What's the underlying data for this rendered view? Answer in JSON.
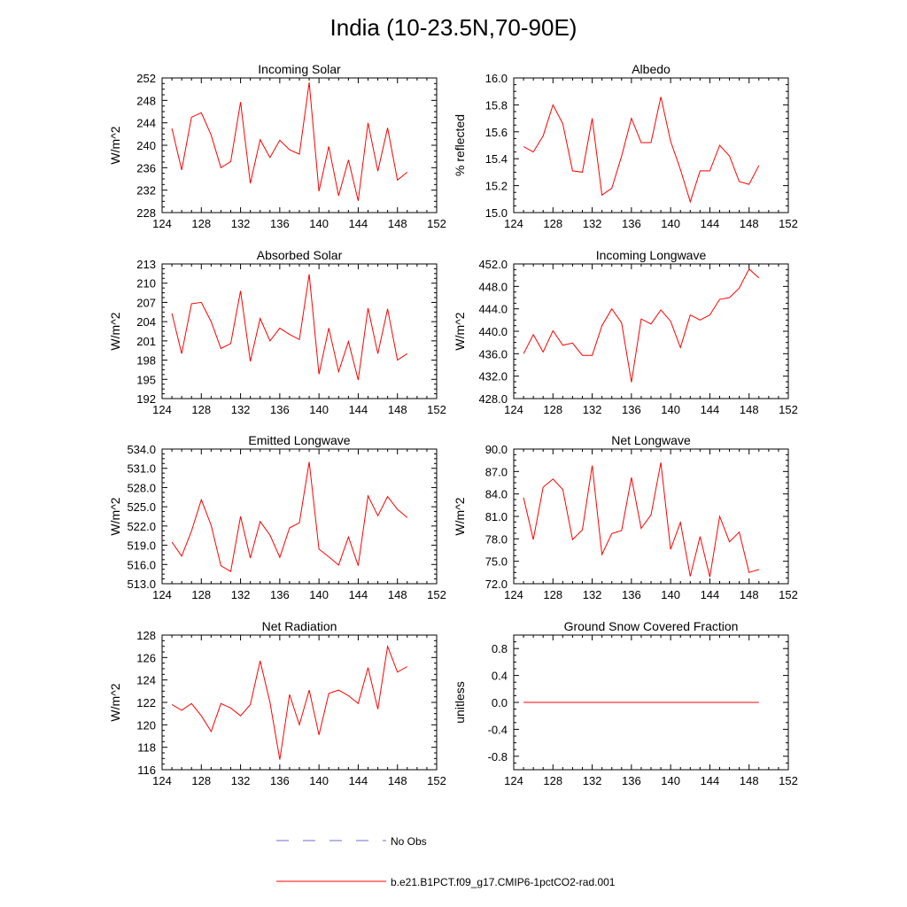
{
  "figure": {
    "title": "India (10-23.5N,70-90E)",
    "legend": [
      {
        "label": "No Obs",
        "color": "#6b6bd6",
        "dash": "dashed"
      },
      {
        "label": "b.e21.B1PCT.f09_g17.CMIP6-1pctCO2-rad.001",
        "color": "#ff0000",
        "dash": "solid"
      }
    ]
  },
  "colors": {
    "series": "#ff0000",
    "axis": "#000000"
  },
  "chart_data": [
    {
      "type": "line",
      "title": "Incoming Solar",
      "ylabel": "W/m^2",
      "xlim": [
        124,
        152
      ],
      "ylim": [
        228,
        252
      ],
      "xticks": [
        "124",
        "128",
        "132",
        "136",
        "140",
        "144",
        "148",
        "152"
      ],
      "yticks": [
        "228",
        "232",
        "236",
        "240",
        "244",
        "248",
        "252"
      ],
      "x": [
        125,
        126,
        127,
        128,
        129,
        130,
        131,
        132,
        133,
        134,
        135,
        136,
        137,
        138,
        139,
        140,
        141,
        142,
        143,
        144,
        145,
        146,
        147,
        148,
        149
      ],
      "series": [
        {
          "values": [
            243.0,
            235.6,
            245.0,
            245.8,
            241.8,
            236.0,
            237.1,
            247.7,
            233.2,
            241.0,
            237.8,
            240.9,
            239.2,
            238.4,
            251.2,
            231.8,
            239.8,
            231.0,
            237.4,
            230.1,
            244.0,
            235.4,
            243.1,
            233.8,
            235.2
          ]
        }
      ]
    },
    {
      "type": "line",
      "title": "Albedo",
      "ylabel": "% reflected",
      "xlim": [
        124,
        152
      ],
      "ylim": [
        15.0,
        16.0
      ],
      "xticks": [
        "124",
        "128",
        "132",
        "136",
        "140",
        "144",
        "148",
        "152"
      ],
      "yticks": [
        "15.0",
        "15.2",
        "15.4",
        "15.6",
        "15.8",
        "16.0"
      ],
      "x": [
        125,
        126,
        127,
        128,
        129,
        130,
        131,
        132,
        133,
        134,
        135,
        136,
        137,
        138,
        139,
        140,
        141,
        142,
        143,
        144,
        145,
        146,
        147,
        148,
        149
      ],
      "series": [
        {
          "values": [
            15.49,
            15.45,
            15.57,
            15.8,
            15.66,
            15.31,
            15.3,
            15.7,
            15.13,
            15.18,
            15.42,
            15.7,
            15.52,
            15.52,
            15.86,
            15.53,
            15.32,
            15.08,
            15.31,
            15.31,
            15.5,
            15.42,
            15.23,
            15.21,
            15.35
          ]
        }
      ]
    },
    {
      "type": "line",
      "title": "Absorbed Solar",
      "ylabel": "W/m^2",
      "xlim": [
        124,
        152
      ],
      "ylim": [
        192,
        213
      ],
      "xticks": [
        "124",
        "128",
        "132",
        "136",
        "140",
        "144",
        "148",
        "152"
      ],
      "yticks": [
        "192",
        "195",
        "198",
        "201",
        "204",
        "207",
        "210",
        "213"
      ],
      "x": [
        125,
        126,
        127,
        128,
        129,
        130,
        131,
        132,
        133,
        134,
        135,
        136,
        137,
        138,
        139,
        140,
        141,
        142,
        143,
        144,
        145,
        146,
        147,
        148,
        149
      ],
      "series": [
        {
          "values": [
            205.3,
            199.0,
            206.8,
            207.0,
            204.0,
            199.8,
            200.6,
            208.8,
            197.8,
            204.5,
            201.0,
            203.0,
            202.0,
            201.2,
            211.4,
            195.8,
            203.0,
            196.2,
            200.9,
            194.9,
            206.1,
            199.0,
            206.0,
            198.0,
            199.0
          ]
        }
      ]
    },
    {
      "type": "line",
      "title": "Incoming Longwave",
      "ylabel": "W/m^2",
      "xlim": [
        124,
        152
      ],
      "ylim": [
        428.0,
        452.0
      ],
      "xticks": [
        "124",
        "128",
        "132",
        "136",
        "140",
        "144",
        "148",
        "152"
      ],
      "yticks": [
        "428.0",
        "432.0",
        "436.0",
        "440.0",
        "444.0",
        "448.0",
        "452.0"
      ],
      "x": [
        125,
        126,
        127,
        128,
        129,
        130,
        131,
        132,
        133,
        134,
        135,
        136,
        137,
        138,
        139,
        140,
        141,
        142,
        143,
        144,
        145,
        146,
        147,
        148,
        149
      ],
      "series": [
        {
          "values": [
            436.0,
            439.4,
            436.3,
            440.1,
            437.5,
            437.9,
            435.7,
            435.7,
            441.0,
            444.0,
            441.5,
            430.9,
            442.2,
            441.3,
            443.8,
            441.8,
            437.1,
            442.9,
            442.0,
            442.9,
            445.7,
            446.0,
            447.7,
            451.1,
            449.5
          ]
        }
      ]
    },
    {
      "type": "line",
      "title": "Emitted Longwave",
      "ylabel": "W/m^2",
      "xlim": [
        124,
        152
      ],
      "ylim": [
        513.0,
        534.0
      ],
      "xticks": [
        "124",
        "128",
        "132",
        "136",
        "140",
        "144",
        "148",
        "152"
      ],
      "yticks": [
        "513.0",
        "516.0",
        "519.0",
        "522.0",
        "525.0",
        "528.0",
        "531.0",
        "534.0"
      ],
      "x": [
        125,
        126,
        127,
        128,
        129,
        130,
        131,
        132,
        133,
        134,
        135,
        136,
        137,
        138,
        139,
        140,
        141,
        142,
        143,
        144,
        145,
        146,
        147,
        148,
        149
      ],
      "series": [
        {
          "values": [
            519.5,
            517.3,
            521.2,
            526.1,
            522.1,
            515.8,
            514.9,
            523.5,
            517.0,
            522.7,
            520.6,
            517.1,
            521.7,
            522.5,
            532.0,
            518.4,
            517.2,
            515.9,
            520.3,
            515.8,
            526.7,
            523.6,
            526.6,
            524.6,
            523.3
          ]
        }
      ]
    },
    {
      "type": "line",
      "title": "Net Longwave",
      "ylabel": "W/m^2",
      "xlim": [
        124,
        152
      ],
      "ylim": [
        72.0,
        90.0
      ],
      "xticks": [
        "124",
        "128",
        "132",
        "136",
        "140",
        "144",
        "148",
        "152"
      ],
      "yticks": [
        "72.0",
        "75.0",
        "78.0",
        "81.0",
        "84.0",
        "87.0",
        "90.0"
      ],
      "x": [
        125,
        126,
        127,
        128,
        129,
        130,
        131,
        132,
        133,
        134,
        135,
        136,
        137,
        138,
        139,
        140,
        141,
        142,
        143,
        144,
        145,
        146,
        147,
        148,
        149
      ],
      "series": [
        {
          "values": [
            83.5,
            77.9,
            84.9,
            86.0,
            84.6,
            77.9,
            79.2,
            87.8,
            75.9,
            78.7,
            79.1,
            86.2,
            79.4,
            81.2,
            88.2,
            76.6,
            80.2,
            73.0,
            78.3,
            72.9,
            81.0,
            77.6,
            78.9,
            73.5,
            73.9
          ]
        }
      ]
    },
    {
      "type": "line",
      "title": "Net Radiation",
      "ylabel": "W/m^2",
      "xlim": [
        124,
        152
      ],
      "ylim": [
        116,
        128
      ],
      "xticks": [
        "124",
        "128",
        "132",
        "136",
        "140",
        "144",
        "148",
        "152"
      ],
      "yticks": [
        "116",
        "118",
        "120",
        "122",
        "124",
        "126",
        "128"
      ],
      "x": [
        125,
        126,
        127,
        128,
        129,
        130,
        131,
        132,
        133,
        134,
        135,
        136,
        137,
        138,
        139,
        140,
        141,
        142,
        143,
        144,
        145,
        146,
        147,
        148,
        149
      ],
      "series": [
        {
          "values": [
            121.8,
            121.3,
            121.9,
            120.8,
            119.4,
            121.9,
            121.5,
            120.8,
            121.8,
            125.7,
            122.0,
            116.9,
            122.7,
            120.0,
            123.1,
            119.1,
            122.8,
            123.1,
            122.6,
            121.9,
            125.1,
            121.4,
            127.0,
            124.7,
            125.2
          ]
        }
      ]
    },
    {
      "type": "line",
      "title": "Ground Snow Covered Fraction",
      "ylabel": "unitless",
      "xlim": [
        124,
        152
      ],
      "ylim": [
        -1.0,
        1.0
      ],
      "xticks": [
        "124",
        "128",
        "132",
        "136",
        "140",
        "144",
        "148",
        "152"
      ],
      "yticks": [
        "-0.8",
        "-0.4",
        "0.0",
        "0.4",
        "0.8"
      ],
      "yticks_values": [
        -0.8,
        -0.4,
        0.0,
        0.4,
        0.8
      ],
      "x": [
        125,
        126,
        127,
        128,
        129,
        130,
        131,
        132,
        133,
        134,
        135,
        136,
        137,
        138,
        139,
        140,
        141,
        142,
        143,
        144,
        145,
        146,
        147,
        148,
        149
      ],
      "series": [
        {
          "values": [
            0,
            0,
            0,
            0,
            0,
            0,
            0,
            0,
            0,
            0,
            0,
            0,
            0,
            0,
            0,
            0,
            0,
            0,
            0,
            0,
            0,
            0,
            0,
            0,
            0
          ]
        }
      ]
    }
  ]
}
